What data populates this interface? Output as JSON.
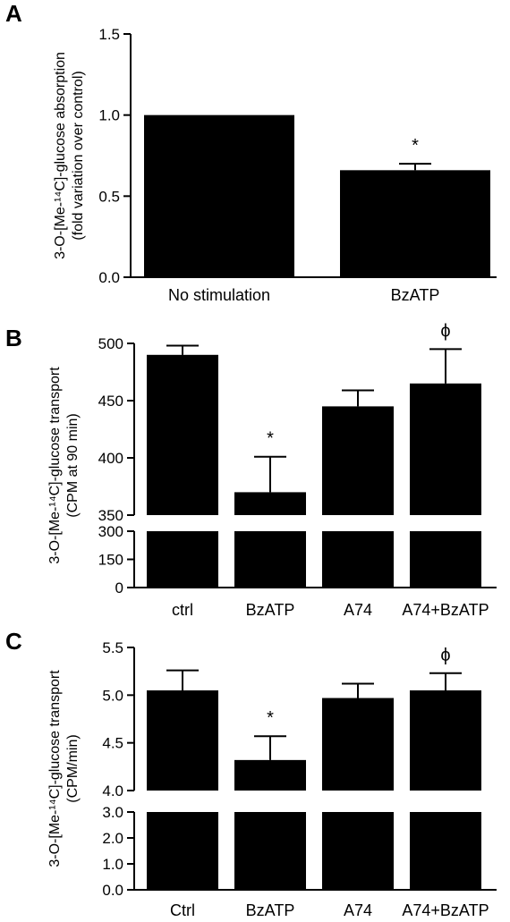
{
  "chart_data": [
    {
      "type": "bar",
      "panel": "A",
      "categories": [
        "No stimulation",
        "BzATP"
      ],
      "values": [
        1.0,
        0.66
      ],
      "errors": [
        0.0,
        0.04
      ],
      "annotations": [
        "",
        "*"
      ],
      "ylim": [
        0,
        1.5
      ],
      "yticks": [
        "0.0",
        "0.5",
        "1.0",
        "1.5"
      ],
      "ylabel_line1": "3-O-[Me-¹⁴C]-glucose absorption",
      "ylabel_line2": "(fold variation over control)"
    },
    {
      "type": "bar",
      "panel": "B",
      "categories": [
        "ctrl",
        "BzATP",
        "A74",
        "A74+BzATP"
      ],
      "values": [
        490,
        370,
        445,
        465
      ],
      "errors": [
        8,
        31,
        14,
        30
      ],
      "annotations": [
        "",
        "*",
        "",
        "ϕ"
      ],
      "ylim": [
        0,
        500
      ],
      "axis_break": [
        300,
        350
      ],
      "yticks_upper": [
        "350",
        "400",
        "450",
        "500"
      ],
      "yticks_lower": [
        "0",
        "150",
        "300"
      ],
      "ylabel_line1": "3-O-[Me-¹⁴C]-glucose transport",
      "ylabel_line2": "(CPM at 90 min)"
    },
    {
      "type": "bar",
      "panel": "C",
      "categories": [
        "Ctrl",
        "BzATP",
        "A74",
        "A74+BzATP"
      ],
      "values": [
        5.05,
        4.32,
        4.97,
        5.05
      ],
      "errors": [
        0.21,
        0.25,
        0.15,
        0.18
      ],
      "annotations": [
        "",
        "*",
        "",
        "ϕ"
      ],
      "ylim": [
        0,
        5.5
      ],
      "axis_break": [
        3.0,
        4.0
      ],
      "yticks_upper": [
        "4.0",
        "4.5",
        "5.0",
        "5.5"
      ],
      "yticks_lower": [
        "0.0",
        "1.0",
        "2.0",
        "3.0"
      ],
      "ylabel_line1": "3-O-[Me-¹⁴C]-glucose transport",
      "ylabel_line2": "(CPM/min)"
    }
  ],
  "colors": {
    "bar": "#000000",
    "axis": "#000000",
    "background": "#ffffff"
  }
}
